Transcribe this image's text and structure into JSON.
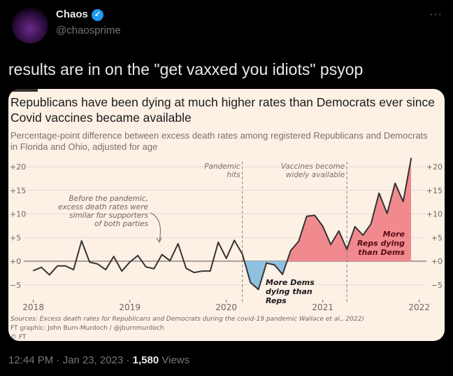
{
  "tweet": {
    "display_name": "Chaos",
    "handle": "@chaosprime",
    "text": "results are in on the \"get vaxxed you idiots\" psyop",
    "time": "12:44 PM",
    "date": "Jan 23, 2023",
    "views_count": "1,580",
    "views_label": "Views",
    "separator": "·",
    "more_icon": "more-horizontal-icon",
    "verified_icon": "verified-badge-icon",
    "colors": {
      "verified": "#1d9bf0",
      "background": "#000000",
      "muted": "#71767b"
    }
  },
  "chart_data": {
    "type": "area",
    "title": "Republicans have been dying at much higher rates than Democrats ever since Covid vaccines became available",
    "subtitle": "Percentage-point difference between excess death rates among registered Republicans and Democrats in Florida and Ohio, adjusted for age",
    "xlabel": "",
    "ylabel": "",
    "x_start": 2018.0,
    "x_step_months": 1,
    "xlim": [
      2018,
      2022
    ],
    "ylim": [
      -6.5,
      22
    ],
    "x_ticks": [
      "2018",
      "2019",
      "2020",
      "2021",
      "2022"
    ],
    "y_ticks": [
      {
        "v": 20,
        "label": "+20"
      },
      {
        "v": 15,
        "label": "+15"
      },
      {
        "v": 10,
        "label": "+10"
      },
      {
        "v": 5,
        "label": "+5"
      },
      {
        "v": 0,
        "label": "+0"
      },
      {
        "v": -5,
        "label": "−5"
      }
    ],
    "values": [
      -2.0,
      -1.3,
      -2.9,
      -1.0,
      -1.0,
      -1.8,
      4.3,
      -0.2,
      -0.6,
      -1.8,
      1.0,
      -2.1,
      -0.2,
      1.2,
      -1.2,
      -1.6,
      1.4,
      0.1,
      3.7,
      -1.5,
      -2.4,
      -2.1,
      -2.1,
      4.0,
      0.6,
      4.4,
      1.5,
      -4.5,
      -6.0,
      -0.4,
      -0.8,
      -2.8,
      2.2,
      4.2,
      9.5,
      9.7,
      7.4,
      3.5,
      6.4,
      2.5,
      7.3,
      5.5,
      7.9,
      14.4,
      10.1,
      16.5,
      12.6,
      21.8
    ],
    "events": [
      {
        "month_index": 26,
        "label_lines": [
          "Pandemic",
          "hits"
        ]
      },
      {
        "month_index": 39,
        "label_lines": [
          "Vaccines become",
          "widely available"
        ]
      }
    ],
    "annotations": {
      "before": [
        "Before the pandemic,",
        "excess death rates were",
        "similar for supporters",
        "of both parties"
      ],
      "dems": [
        "More Dems",
        "dying than",
        "Reps"
      ],
      "reps": [
        "More",
        "Reps dying",
        "than Dems"
      ]
    },
    "sources": [
      "Sources: Excess death rates for Republicans and Democrats during the covid-19 pandemic Wallace et al., 2022)",
      "FT graphic: John Burn-Murdoch / @jburnmurdoch",
      "© FT"
    ],
    "colors": {
      "line": "#333333",
      "positive_fill": "#f08a8e",
      "negative_fill": "#8fc1df",
      "background": "#fdf1e6",
      "grid": "#e6dcd2"
    },
    "grid": true
  }
}
